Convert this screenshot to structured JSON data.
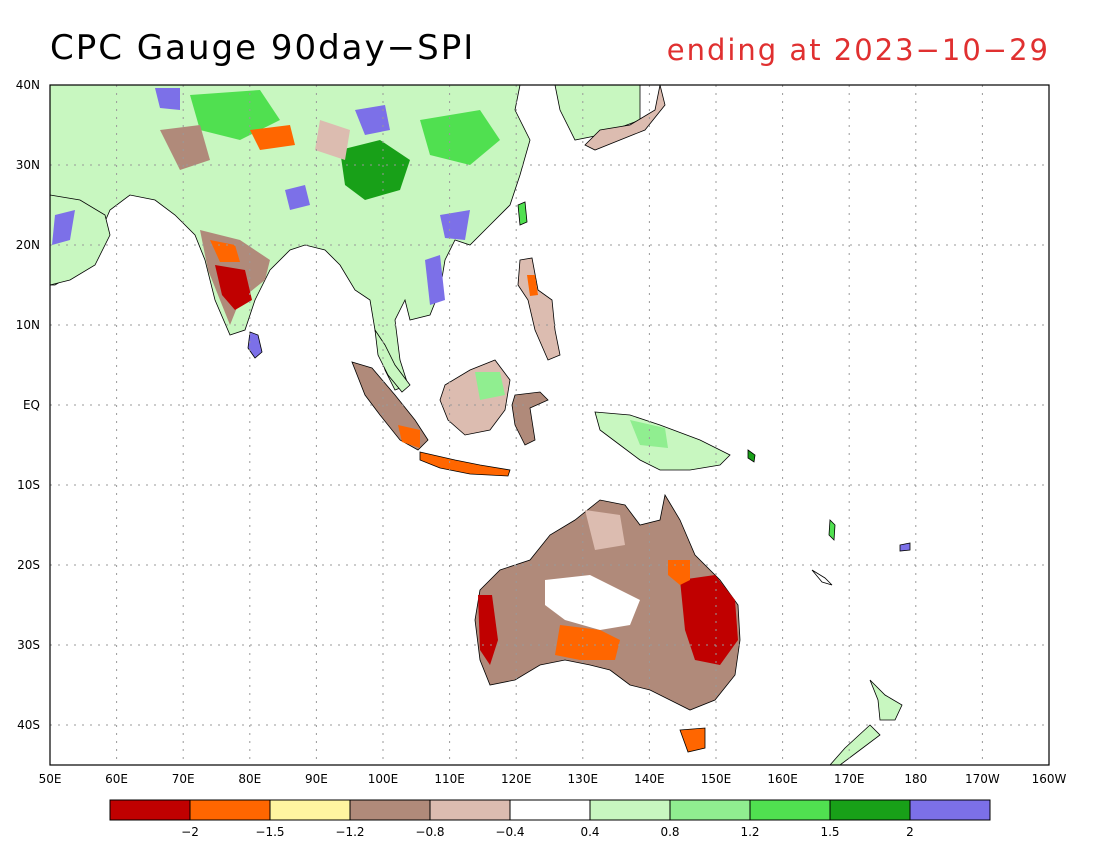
{
  "title": "CPC Gauge 90day−SPI",
  "subtitle": "ending at 2023−10−29",
  "map": {
    "lon_range": [
      50,
      200
    ],
    "lat_range": [
      -45,
      40
    ],
    "lat_labels": [
      "40N",
      "30N",
      "20N",
      "10N",
      "EQ",
      "10S",
      "20S",
      "30S",
      "40S"
    ],
    "lon_labels": [
      "50E",
      "60E",
      "70E",
      "80E",
      "90E",
      "100E",
      "110E",
      "120E",
      "130E",
      "140E",
      "150E",
      "160E",
      "170E",
      "180",
      "170W",
      "160W"
    ],
    "grid": true
  },
  "colorbar": {
    "colors": [
      "#c00000",
      "#ff6600",
      "#fff5a0",
      "#b08a7a",
      "#dcbcb0",
      "#ffffff",
      "#c8f7c0",
      "#90ee90",
      "#50e050",
      "#18a018",
      "#7c70e8"
    ],
    "labels": [
      "−2",
      "−1.5",
      "−1.2",
      "−0.8",
      "−0.4",
      "0.4",
      "0.8",
      "1.2",
      "1.5",
      "2"
    ]
  }
}
